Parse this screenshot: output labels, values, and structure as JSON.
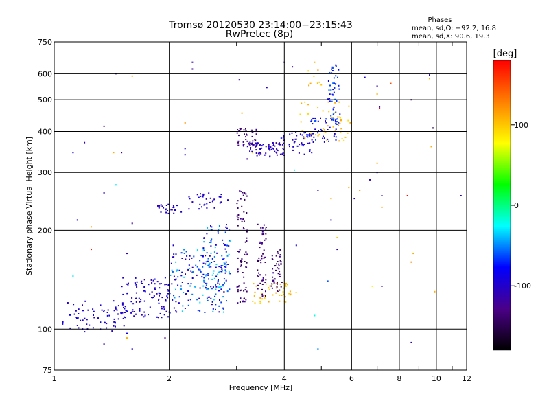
{
  "chart_data": {
    "type": "scatter",
    "title": "Tromsø 20120530 23:14:00−23:15:43",
    "subtitle": "RwPretec (8p)",
    "xlabel": "Frequency [MHz]",
    "ylabel": "Stationary phase Virtual Height [km]",
    "x_scale": "log",
    "y_scale": "log",
    "xlim": [
      1,
      12
    ],
    "ylim": [
      75,
      750
    ],
    "x_ticks": [
      1,
      2,
      4,
      6,
      8,
      10,
      12
    ],
    "x_minor_ticks": [
      3,
      5,
      7,
      9,
      11
    ],
    "y_ticks": [
      75,
      100,
      200,
      300,
      400,
      500,
      600,
      750
    ],
    "grid": true,
    "stats_header": "Phases",
    "stats_line1": "mean, sd,O: −92.2, 16.8",
    "stats_line2": "mean, sd,X:  90.6, 19.3",
    "colorbar": {
      "label": "[deg]",
      "range": [
        -180,
        180
      ],
      "ticks": [
        100,
        0,
        -100
      ],
      "colors": [
        "#000000",
        "#4b0088",
        "#0000ff",
        "#00ffff",
        "#00ff00",
        "#ffff00",
        "#ff8000",
        "#ff0000"
      ]
    },
    "series": [
      {
        "clusters": [
          {
            "x": [
              1.05,
              1.55
            ],
            "y": [
              98,
              122
            ],
            "phase": [
              -105,
              -85
            ],
            "n": 70
          },
          {
            "x": [
              1.5,
              2.0
            ],
            "y": [
              108,
              145
            ],
            "phase": [
              -110,
              -80
            ],
            "n": 110
          },
          {
            "x": [
              2.0,
              2.85
            ],
            "y": [
              112,
              175
            ],
            "phase": [
              -115,
              -30
            ],
            "n": 170
          },
          {
            "x": [
              2.45,
              2.9
            ],
            "y": [
              130,
              210
            ],
            "phase": [
              -100,
              -30
            ],
            "n": 90
          },
          {
            "x": [
              1.85,
              2.15
            ],
            "y": [
              225,
              240
            ],
            "phase": [
              -110,
              -85
            ],
            "n": 25
          },
          {
            "x": [
              2.25,
              2.85
            ],
            "y": [
              232,
              260
            ],
            "phase": [
              -110,
              -85
            ],
            "n": 35
          },
          {
            "x": [
              3.0,
              3.2
            ],
            "y": [
              120,
              270
            ],
            "phase": [
              -150,
              -115
            ],
            "n": 80
          },
          {
            "x": [
              3.4,
              3.6
            ],
            "y": [
              125,
              210
            ],
            "phase": [
              -150,
              -115
            ],
            "n": 50
          },
          {
            "x": [
              3.7,
              3.95
            ],
            "y": [
              130,
              175
            ],
            "phase": [
              -150,
              -115
            ],
            "n": 45
          },
          {
            "x": [
              3.3,
              4.3
            ],
            "y": [
              120,
              138
            ],
            "phase": [
              90,
              115
            ],
            "n": 45
          },
          {
            "x": [
              3.0,
              3.4
            ],
            "y": [
              360,
              410
            ],
            "phase": [
              -150,
              -115
            ],
            "n": 45
          },
          {
            "x": [
              3.2,
              4.0
            ],
            "y": [
              335,
              370
            ],
            "phase": [
              -115,
              -95
            ],
            "n": 70
          },
          {
            "x": [
              3.9,
              4.8
            ],
            "y": [
              340,
              400
            ],
            "phase": [
              -110,
              -80
            ],
            "n": 50
          },
          {
            "x": [
              4.6,
              5.5
            ],
            "y": [
              370,
              440
            ],
            "phase": [
              -100,
              -60
            ],
            "n": 40
          },
          {
            "x": [
              5.2,
              5.6
            ],
            "y": [
              420,
              640
            ],
            "phase": [
              -90,
              -50
            ],
            "n": 50
          },
          {
            "x": [
              4.4,
              6.0
            ],
            "y": [
              370,
              500
            ],
            "phase": [
              90,
              115
            ],
            "n": 45
          },
          {
            "x": [
              4.6,
              5.0
            ],
            "y": [
              540,
              620
            ],
            "phase": [
              95,
              115
            ],
            "n": 8
          }
        ],
        "scattered": [
          {
            "x": 1.45,
            "y": 600,
            "phase": -100
          },
          {
            "x": 1.6,
            "y": 590,
            "phase": 110
          },
          {
            "x": 2.3,
            "y": 650,
            "phase": -110
          },
          {
            "x": 2.3,
            "y": 620,
            "phase": -120
          },
          {
            "x": 1.35,
            "y": 415,
            "phase": -130
          },
          {
            "x": 1.2,
            "y": 370,
            "phase": -110
          },
          {
            "x": 1.12,
            "y": 345,
            "phase": -90
          },
          {
            "x": 1.5,
            "y": 345,
            "phase": -120
          },
          {
            "x": 1.43,
            "y": 345,
            "phase": 110
          },
          {
            "x": 2.2,
            "y": 355,
            "phase": -100
          },
          {
            "x": 2.2,
            "y": 340,
            "phase": -105
          },
          {
            "x": 2.2,
            "y": 425,
            "phase": 120
          },
          {
            "x": 3.05,
            "y": 575,
            "phase": -110
          },
          {
            "x": 3.6,
            "y": 545,
            "phase": -100
          },
          {
            "x": 3.1,
            "y": 455,
            "phase": 110
          },
          {
            "x": 3.3,
            "y": 345,
            "phase": 100
          },
          {
            "x": 4.0,
            "y": 650,
            "phase": -110
          },
          {
            "x": 4.2,
            "y": 630,
            "phase": -120
          },
          {
            "x": 4.8,
            "y": 650,
            "phase": 110
          },
          {
            "x": 4.9,
            "y": 615,
            "phase": 120
          },
          {
            "x": 6.5,
            "y": 585,
            "phase": -100
          },
          {
            "x": 7.0,
            "y": 550,
            "phase": -110
          },
          {
            "x": 7.0,
            "y": 520,
            "phase": 110
          },
          {
            "x": 7.1,
            "y": 475,
            "phase": -120
          },
          {
            "x": 7.1,
            "y": 470,
            "phase": 200
          },
          {
            "x": 7.6,
            "y": 560,
            "phase": 150
          },
          {
            "x": 8.6,
            "y": 500,
            "phase": -140
          },
          {
            "x": 9.6,
            "y": 580,
            "phase": 110
          },
          {
            "x": 9.6,
            "y": 595,
            "phase": -100
          },
          {
            "x": 9.8,
            "y": 410,
            "phase": -150
          },
          {
            "x": 9.7,
            "y": 360,
            "phase": 110
          },
          {
            "x": 7.0,
            "y": 320,
            "phase": 110
          },
          {
            "x": 7.0,
            "y": 300,
            "phase": -100
          },
          {
            "x": 4.25,
            "y": 305,
            "phase": -20
          },
          {
            "x": 4.9,
            "y": 265,
            "phase": -100
          },
          {
            "x": 5.3,
            "y": 250,
            "phase": 110
          },
          {
            "x": 5.9,
            "y": 270,
            "phase": 110
          },
          {
            "x": 6.1,
            "y": 250,
            "phase": -100
          },
          {
            "x": 6.3,
            "y": 265,
            "phase": 120
          },
          {
            "x": 6.7,
            "y": 285,
            "phase": -110
          },
          {
            "x": 7.2,
            "y": 255,
            "phase": -100
          },
          {
            "x": 7.2,
            "y": 235,
            "phase": 120
          },
          {
            "x": 8.4,
            "y": 255,
            "phase": 175
          },
          {
            "x": 11.6,
            "y": 255,
            "phase": -100
          },
          {
            "x": 1.35,
            "y": 260,
            "phase": -110
          },
          {
            "x": 1.45,
            "y": 275,
            "phase": -30
          },
          {
            "x": 1.15,
            "y": 215,
            "phase": -100
          },
          {
            "x": 1.25,
            "y": 205,
            "phase": 110
          },
          {
            "x": 1.6,
            "y": 210,
            "phase": -120
          },
          {
            "x": 1.25,
            "y": 175,
            "phase": 170
          },
          {
            "x": 1.55,
            "y": 170,
            "phase": -110
          },
          {
            "x": 2.05,
            "y": 180,
            "phase": -100
          },
          {
            "x": 1.12,
            "y": 145,
            "phase": -30
          },
          {
            "x": 1.35,
            "y": 90,
            "phase": -110
          },
          {
            "x": 1.55,
            "y": 97,
            "phase": -90
          },
          {
            "x": 1.55,
            "y": 94,
            "phase": 110
          },
          {
            "x": 1.6,
            "y": 87,
            "phase": -100
          },
          {
            "x": 1.95,
            "y": 94,
            "phase": -130
          },
          {
            "x": 4.9,
            "y": 87,
            "phase": -50
          },
          {
            "x": 4.8,
            "y": 110,
            "phase": -20
          },
          {
            "x": 5.2,
            "y": 140,
            "phase": -60
          },
          {
            "x": 5.5,
            "y": 175,
            "phase": -110
          },
          {
            "x": 5.5,
            "y": 190,
            "phase": 100
          },
          {
            "x": 5.3,
            "y": 215,
            "phase": -110
          },
          {
            "x": 6.8,
            "y": 135,
            "phase": 80
          },
          {
            "x": 7.2,
            "y": 135,
            "phase": -100
          },
          {
            "x": 8.7,
            "y": 170,
            "phase": 110
          },
          {
            "x": 8.6,
            "y": 160,
            "phase": 120
          },
          {
            "x": 9.9,
            "y": 130,
            "phase": 110
          },
          {
            "x": 8.6,
            "y": 91,
            "phase": -110
          },
          {
            "x": 4.3,
            "y": 180,
            "phase": -90
          },
          {
            "x": 3.2,
            "y": 330,
            "phase": -120
          }
        ]
      }
    ]
  }
}
